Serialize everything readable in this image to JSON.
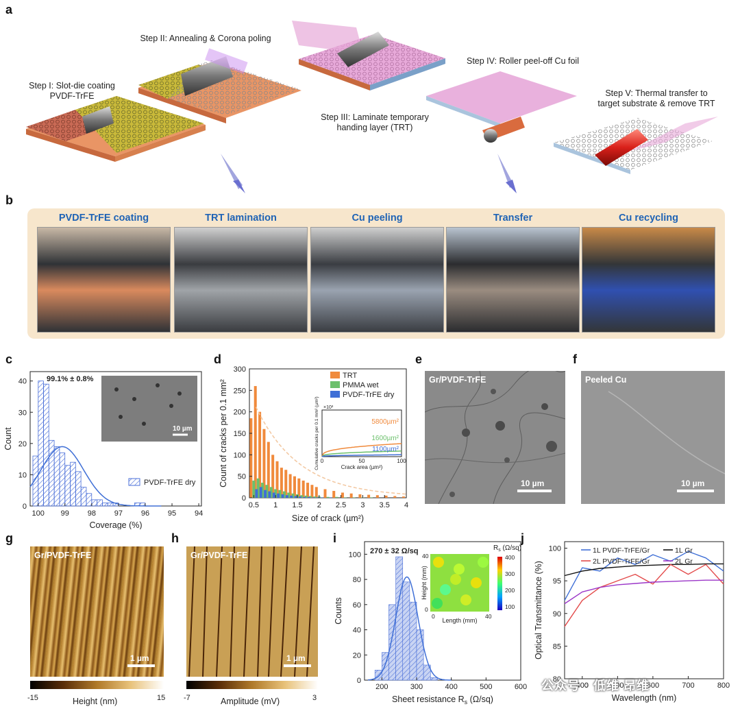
{
  "panel_labels": {
    "a": "a",
    "b": "b",
    "c": "c",
    "d": "d",
    "e": "e",
    "f": "f",
    "g": "g",
    "h": "h",
    "i": "i",
    "j": "j"
  },
  "steps": {
    "s1_line1": "Step I: Slot-die coating",
    "s1_line2": "PVDF-TrFE",
    "s2": "Step II: Annealing & Corona poling",
    "s3_line1": "Step III: Laminate temporary",
    "s3_line2": "handing layer (TRT)",
    "s4": "Step IV: Roller peel-off Cu foil",
    "s5_line1": "Step V: Thermal transfer to",
    "s5_line2": "target substrate & remove TRT"
  },
  "photos": [
    {
      "title": "PVDF-TrFE coating"
    },
    {
      "title": "TRT lamination"
    },
    {
      "title": "Cu peeling"
    },
    {
      "title": "Transfer"
    },
    {
      "title": "Cu recycling"
    }
  ],
  "panel_c": {
    "annotation": "99.1% ± 0.8%",
    "inset_scale": "10 µm",
    "legend": "PVDF-TrFE dry",
    "ylabel": "Count",
    "xlabel": "Coverage (%)",
    "xticks": [
      "100",
      "99",
      "98",
      "97",
      "96",
      "95",
      "94"
    ],
    "yticks": [
      "0",
      "10",
      "20",
      "30",
      "40"
    ]
  },
  "panel_d": {
    "ylabel": "Count of cracks per 0.1 mm²",
    "xlabel": "Size of crack (µm²)",
    "xticks": [
      "0.5",
      "1",
      "1.5",
      "2",
      "2.5",
      "3",
      "3.5",
      "4"
    ],
    "yticks": [
      "0",
      "50",
      "100",
      "150",
      "200",
      "250",
      "300"
    ],
    "legend": [
      "TRT",
      "PMMA wet",
      "PVDF-TrFE dry"
    ],
    "inset_ylabel": "Cumulative cracks per 0.1 mm² (µm²)",
    "inset_xlabel": "Crack area (µm²)",
    "inset_multiplier": "×10³",
    "inset_values": [
      "5800µm²",
      "1600µm²",
      "1100µm²"
    ],
    "inset_xticks": [
      "0",
      "50",
      "100"
    ]
  },
  "panel_e": {
    "label": "Gr/PVDF-TrFE",
    "scale": "10 µm"
  },
  "panel_f": {
    "label": "Peeled Cu",
    "scale": "10 µm"
  },
  "panel_g": {
    "label": "Gr/PVDF-TrFE",
    "scale": "1 µm",
    "cb_min": "-15",
    "cb_max": "15",
    "cb_title": "Height (nm)"
  },
  "panel_h": {
    "label": "Gr/PVDF-TrFE",
    "scale": "1 µm",
    "cb_min": "-7",
    "cb_max": "3",
    "cb_title": "Amplitude (mV)"
  },
  "panel_i": {
    "annotation": "270 ± 32 Ω/sq",
    "ylabel": "Counts",
    "xlabel": "Sheet resistance R",
    "xlabel_sub": "s",
    "xlabel_unit": " (Ω/sq)",
    "xticks": [
      "200",
      "300",
      "400",
      "500",
      "600"
    ],
    "yticks": [
      "0",
      "20",
      "40",
      "60",
      "80",
      "100"
    ],
    "inset_title": "R",
    "inset_title_sub": "s",
    "inset_title_unit": " (Ω/sq)",
    "inset_ylabel": "Height (mm)",
    "inset_xlabel": "Length (mm)",
    "inset_cb": [
      "400",
      "300",
      "200",
      "100"
    ],
    "inset_x": [
      "0",
      "40"
    ],
    "inset_y": [
      "40",
      "0"
    ]
  },
  "panel_j": {
    "ylabel": "Optical Transmittance (%)",
    "xlabel": "Wavelength (nm)",
    "yticks": [
      "80",
      "85",
      "90",
      "95",
      "100"
    ],
    "xticks": [
      "400",
      "500",
      "600",
      "700",
      "800"
    ],
    "legend": [
      "1L PVDF-TrFE/Gr",
      "1L Gr",
      "2L PVDF-TrFE/Gr",
      "2L Gr"
    ]
  },
  "watermark": "公众号 · 低维 昂维",
  "colors": {
    "blue": "#3f6fd6",
    "orange": "#f08a3c",
    "green": "#6cc06c",
    "purple": "#9b36c8",
    "red": "#e34b4b",
    "black": "#111111",
    "title_blue": "#1f63b5",
    "panel_b_bg": "#f7e6cc"
  },
  "chart_data": [
    {
      "type": "bar",
      "title": "",
      "xlabel": "Coverage (%)",
      "ylabel": "Count",
      "xlim": [
        100.3,
        93.9
      ],
      "ylim": [
        0,
        43
      ],
      "x": [
        100.1,
        99.9,
        99.7,
        99.5,
        99.3,
        99.1,
        98.9,
        98.7,
        98.5,
        98.3,
        98.1,
        97.9,
        97.7,
        97.5,
        97.3,
        97.1,
        96.9,
        96.7,
        96.5,
        96.3,
        96.1,
        95.9
      ],
      "series": [
        {
          "name": "PVDF-TrFE dry",
          "values": [
            16,
            40,
            39,
            21,
            19,
            17,
            13,
            14,
            11,
            6,
            4,
            2,
            2,
            1,
            1,
            1,
            0,
            0,
            0,
            1,
            1,
            0
          ]
        }
      ]
    },
    {
      "type": "bar",
      "title": "",
      "xlabel": "Size of crack (µm²)",
      "ylabel": "Count of cracks per 0.1 mm²",
      "ylim": [
        0,
        300
      ],
      "xlim": [
        0.4,
        4
      ],
      "x": [
        0.5,
        0.6,
        0.7,
        0.8,
        0.9,
        1.0,
        1.1,
        1.2,
        1.3,
        1.4,
        1.5,
        1.6,
        1.7,
        1.8,
        1.9,
        2.0,
        2.2,
        2.4,
        2.6,
        2.8,
        3.0,
        3.2,
        3.4,
        3.6,
        3.8,
        4.0
      ],
      "series": [
        {
          "name": "TRT",
          "values": [
            185,
            260,
            200,
            160,
            130,
            100,
            85,
            70,
            65,
            55,
            50,
            45,
            40,
            35,
            30,
            25,
            20,
            16,
            12,
            10,
            8,
            7,
            6,
            5,
            4,
            3
          ]
        },
        {
          "name": "PMMA wet",
          "values": [
            40,
            45,
            35,
            30,
            25,
            20,
            18,
            15,
            12,
            10,
            8,
            6,
            5,
            4,
            3,
            3,
            2,
            2,
            1,
            1,
            1,
            1,
            0,
            0,
            0,
            0
          ]
        },
        {
          "name": "PVDF-TrFE dry",
          "values": [
            20,
            25,
            18,
            15,
            12,
            10,
            8,
            6,
            5,
            4,
            3,
            2,
            2,
            1,
            1,
            1,
            1,
            0,
            0,
            0,
            0,
            0,
            0,
            0,
            0,
            0
          ]
        }
      ]
    },
    {
      "type": "bar",
      "title": "",
      "xlabel": "Sheet resistance Rs (Ω/sq)",
      "ylabel": "Counts",
      "xlim": [
        150,
        600
      ],
      "ylim": [
        0,
        110
      ],
      "x": [
        190,
        210,
        230,
        250,
        270,
        290,
        310,
        330,
        350
      ],
      "series": [
        {
          "name": "",
          "values": [
            8,
            22,
            60,
            98,
            78,
            62,
            40,
            12,
            2
          ]
        }
      ]
    },
    {
      "type": "line",
      "title": "",
      "xlabel": "Wavelength (nm)",
      "ylabel": "Optical Transmittance (%)",
      "xlim": [
        350,
        800
      ],
      "ylim": [
        80,
        101
      ],
      "x": [
        350,
        400,
        450,
        500,
        550,
        600,
        650,
        700,
        750,
        800
      ],
      "series": [
        {
          "name": "1L PVDF-TrFE/Gr",
          "values": [
            92,
            97,
            96.5,
            98.5,
            97.5,
            99,
            98,
            99.5,
            98.5,
            96.5
          ]
        },
        {
          "name": "1L Gr",
          "values": [
            95.8,
            96.5,
            96.9,
            97.1,
            97.3,
            97.4,
            97.5,
            97.5,
            97.6,
            97.6
          ]
        },
        {
          "name": "2L PVDF-TrFE/Gr",
          "values": [
            88,
            92,
            94,
            95,
            96,
            94.5,
            97.5,
            96,
            97.5,
            94.5
          ]
        },
        {
          "name": "2L Gr",
          "values": [
            91.5,
            93.3,
            94,
            94.4,
            94.6,
            94.8,
            94.9,
            95,
            95.1,
            95.1
          ]
        }
      ]
    }
  ]
}
